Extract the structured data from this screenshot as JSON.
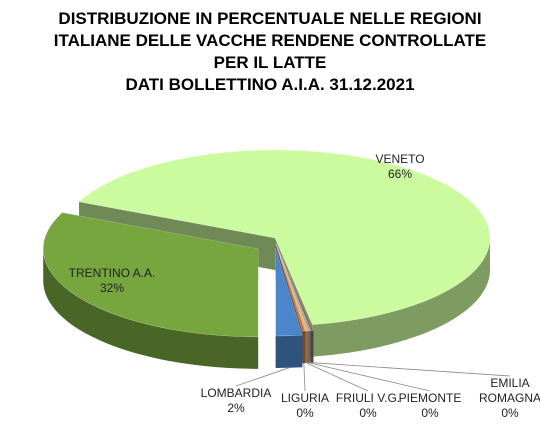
{
  "chart_data": {
    "type": "pie3d",
    "title": [
      "DISTRIBUZIONE IN PERCENTUALE NELLE REGIONI",
      "ITALIANE DELLE VACCHE RENDENE CONTROLLATE",
      "PER IL LATTE",
      "DATI BOLLETTINO A.I.A. 31.12.2021"
    ],
    "categories": [
      "VENETO",
      "TRENTINO A.A.",
      "LOMBARDIA",
      "LIGURIA",
      "FRIULI V.G.",
      "PIEMONTE",
      "EMILIA ROMAGNA"
    ],
    "values": [
      66,
      32,
      2,
      0.2,
      0.2,
      0.2,
      0.2
    ],
    "value_labels": [
      "66%",
      "32%",
      "2%",
      "0%",
      "0%",
      "0%",
      "0%"
    ],
    "colors": [
      "#ccfa9e",
      "#77a53e",
      "#4a86c8",
      "#c0784a",
      "#f2b26a",
      "#a6a6a6",
      "#7f6a55"
    ]
  }
}
